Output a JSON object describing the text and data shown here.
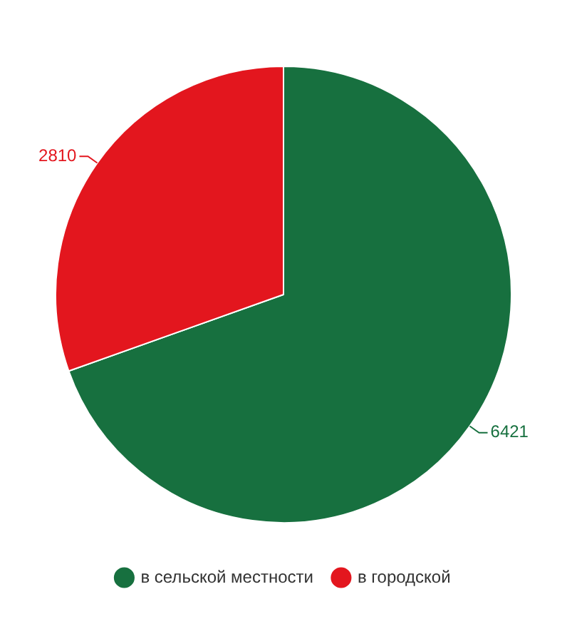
{
  "chart_data": {
    "type": "pie",
    "categories": [
      "в сельской местности",
      "в городской"
    ],
    "values": [
      6421,
      2810
    ],
    "colors": [
      "#17703f",
      "#e3161e"
    ],
    "data_labels": true,
    "legend": "bottom"
  }
}
